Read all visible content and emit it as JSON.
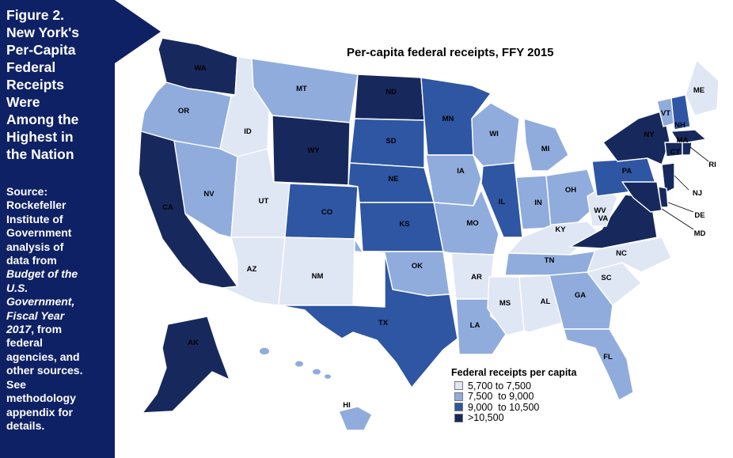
{
  "sidebar": {
    "title_lines": [
      "Figure 2.",
      "New York's",
      "Per-Capita",
      "Federal",
      "Receipts",
      "Were",
      "Among the",
      "Highest in",
      "the Nation"
    ],
    "source_lines": [
      {
        "text": "Source:",
        "italic": false
      },
      {
        "text": "Rockefeller",
        "italic": false
      },
      {
        "text": "Institute of",
        "italic": false
      },
      {
        "text": "Government",
        "italic": false
      },
      {
        "text": "analysis of",
        "italic": false
      },
      {
        "text": "data from",
        "italic": false
      },
      {
        "text": "Budget of the",
        "italic": true
      },
      {
        "text": "U.S.",
        "italic": true
      },
      {
        "text": "Government,",
        "italic": true
      },
      {
        "text": "Fiscal Year",
        "italic": true
      },
      {
        "text": "2017",
        "italic": true,
        "suffix": ", from"
      },
      {
        "text": "federal",
        "italic": false
      },
      {
        "text": "agencies, and",
        "italic": false
      },
      {
        "text": "other sources.",
        "italic": false
      },
      {
        "text": "See",
        "italic": false
      },
      {
        "text": "methodology",
        "italic": false
      },
      {
        "text": "appendix for",
        "italic": false
      },
      {
        "text": "details.",
        "italic": false
      }
    ]
  },
  "map": {
    "title": "Per-capita federal receipts, FFY 2015",
    "legend": {
      "title": "Federal receipts per capita",
      "classes": [
        {
          "label": "5,700 to 7,500",
          "color": "#dfe6f4"
        },
        {
          "label": "7,500  to 9,000",
          "color": "#90acdd"
        },
        {
          "label": "9,000  to 10,500",
          "color": "#2e56a2"
        },
        {
          "label": ">10,500",
          "color": "#17295c"
        }
      ]
    },
    "states": {
      "WA": 3,
      "OR": 1,
      "CA": 3,
      "NV": 1,
      "ID": 0,
      "MT": 1,
      "WY": 3,
      "UT": 0,
      "AZ": 0,
      "CO": 2,
      "NM": 0,
      "ND": 3,
      "SD": 2,
      "NE": 2,
      "KS": 2,
      "OK": 1,
      "TX": 2,
      "MN": 2,
      "IA": 1,
      "MO": 1,
      "AR": 0,
      "LA": 1,
      "WI": 1,
      "IL": 2,
      "MI": 1,
      "IN": 1,
      "OH": 1,
      "KY": 0,
      "TN": 1,
      "MS": 0,
      "AL": 0,
      "GA": 1,
      "FL": 1,
      "SC": 0,
      "NC": 0,
      "VA": 3,
      "WV": 0,
      "PA": 2,
      "NY": 3,
      "VT": 1,
      "NH": 2,
      "ME": 0,
      "MA": 3,
      "CT": 3,
      "RI": 3,
      "NJ": 3,
      "DE": 3,
      "MD": 3,
      "AK": 3,
      "HI": 1
    },
    "callout_labels": [
      "RI",
      "NJ",
      "DE",
      "MD"
    ]
  }
}
